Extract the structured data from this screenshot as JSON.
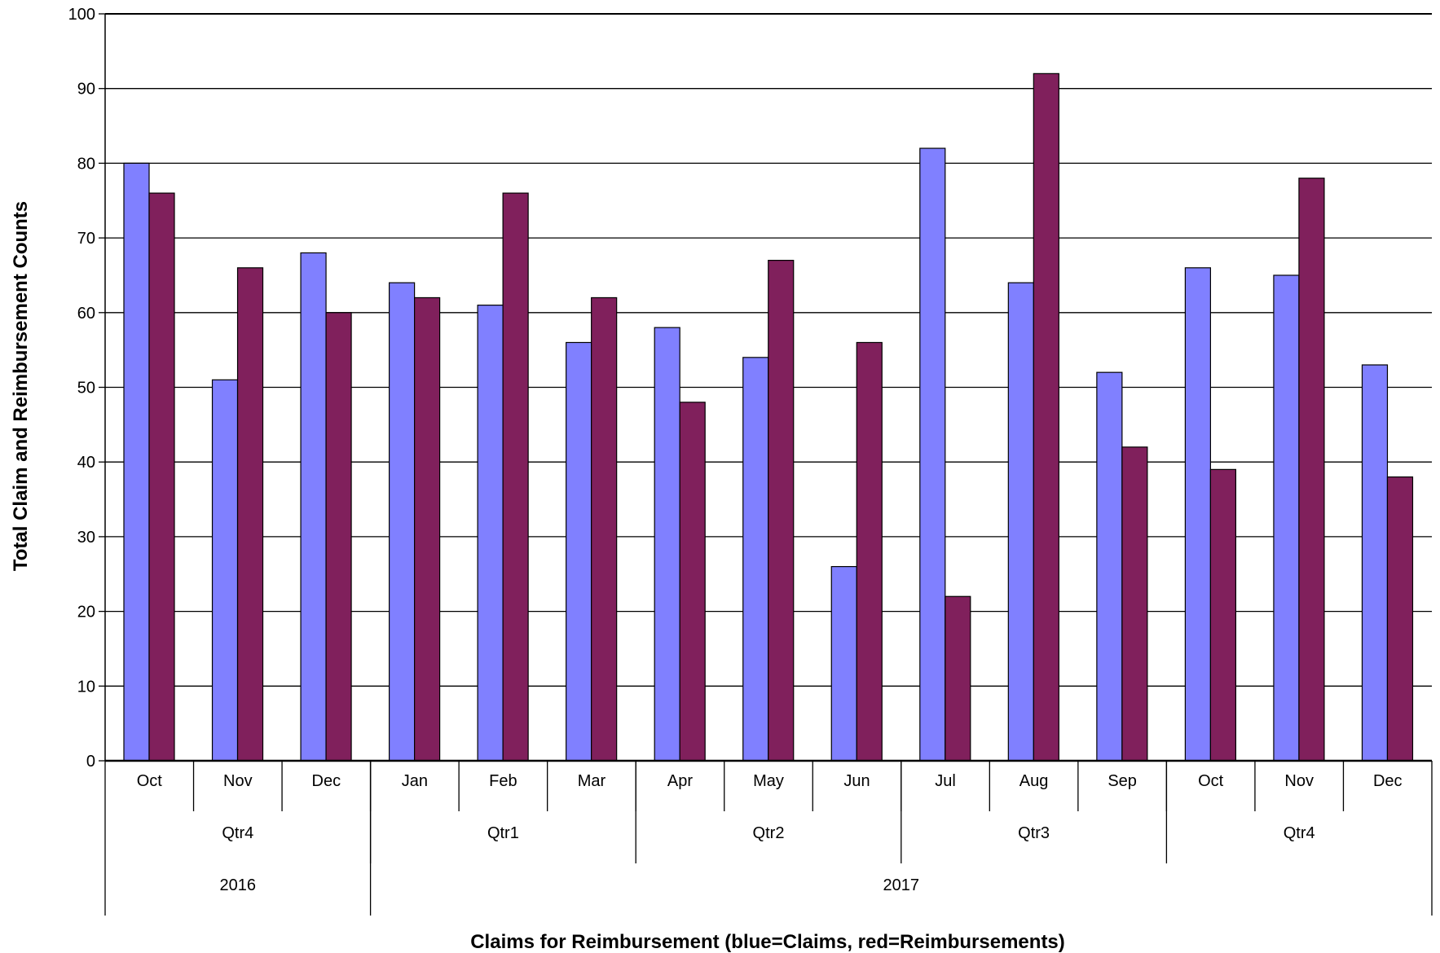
{
  "chart_data": {
    "type": "bar",
    "title": "",
    "xlabel": "Claims for Reimbursement (blue=Claims, red=Reimbursements)",
    "ylabel": "Total Claim and Reimbursement Counts",
    "ylim": [
      0,
      100
    ],
    "yticks": [
      0,
      10,
      20,
      30,
      40,
      50,
      60,
      70,
      80,
      90,
      100
    ],
    "grid": true,
    "categories": [
      "Oct",
      "Nov",
      "Dec",
      "Jan",
      "Feb",
      "Mar",
      "Apr",
      "May",
      "Jun",
      "Jul",
      "Aug",
      "Sep",
      "Oct",
      "Nov",
      "Dec"
    ],
    "quarters": [
      {
        "label": "Qtr4",
        "months": 3
      },
      {
        "label": "Qtr1",
        "months": 3
      },
      {
        "label": "Qtr2",
        "months": 3
      },
      {
        "label": "Qtr3",
        "months": 3
      },
      {
        "label": "Qtr4",
        "months": 3
      }
    ],
    "years": [
      {
        "label": "2016",
        "months": 3
      },
      {
        "label": "2017",
        "months": 12
      }
    ],
    "series": [
      {
        "key": "claims",
        "color": "#8080ff",
        "values": [
          80,
          51,
          68,
          64,
          61,
          56,
          58,
          54,
          26,
          82,
          64,
          52,
          66,
          65,
          53
        ]
      },
      {
        "key": "reimbursements",
        "color": "#80205c",
        "values": [
          76,
          66,
          60,
          62,
          76,
          62,
          48,
          67,
          56,
          22,
          92,
          42,
          39,
          78,
          38
        ]
      }
    ]
  }
}
